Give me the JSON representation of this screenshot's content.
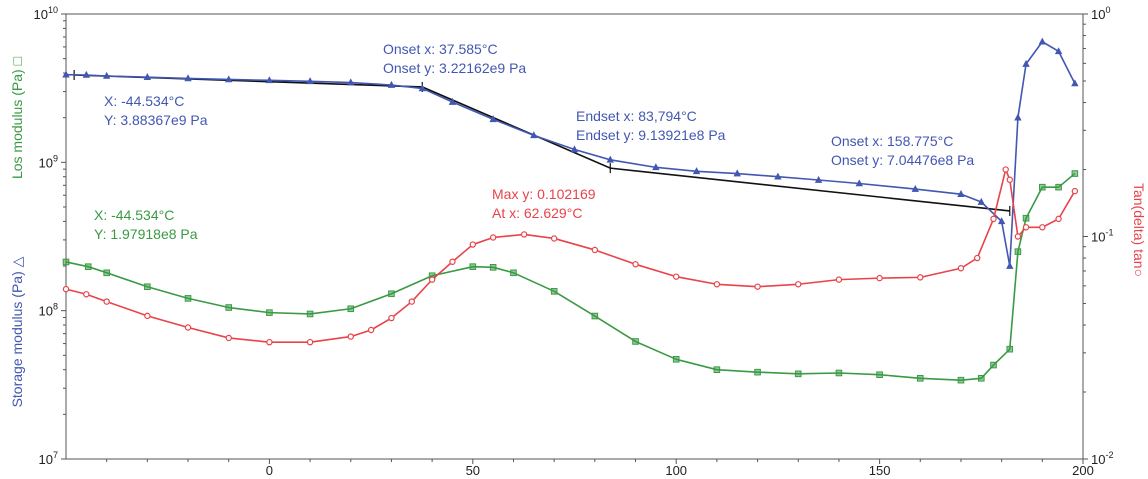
{
  "chart_data": {
    "type": "line",
    "xlabel": "",
    "xlim": [
      -50,
      200
    ],
    "x_ticks": [
      "0",
      "50",
      "100",
      "150",
      "200"
    ],
    "left_axis": {
      "scale": "log",
      "ylim": [
        10000000,
        10000000000
      ],
      "ticks": [
        {
          "base": "10",
          "exp": "7"
        },
        {
          "base": "10",
          "exp": "8"
        },
        {
          "base": "10",
          "exp": "9"
        },
        {
          "base": "10",
          "exp": "10"
        }
      ],
      "label_storage": "Storage modulus (Pa) △",
      "label_loss": "Los modulus (Pa) □"
    },
    "right_axis": {
      "scale": "log",
      "ylim": [
        0.01,
        1
      ],
      "ticks": [
        {
          "base": "10",
          "exp": "-2"
        },
        {
          "base": "10",
          "exp": "-1"
        },
        {
          "base": "10",
          "exp": "0"
        }
      ],
      "label": "Tan(delta) tan○"
    },
    "colors": {
      "storage": "#4257b2",
      "loss": "#3a9a44",
      "tan": "#e8434a",
      "onset_line": "#111111",
      "axis": "#555555"
    },
    "series": [
      {
        "key": "storage",
        "axis": "left",
        "marker": "triangle",
        "x": [
          -50,
          -45,
          -40,
          -30,
          -20,
          -10,
          0,
          10,
          20,
          30,
          37.585,
          45,
          55,
          65,
          75,
          83.794,
          95,
          105,
          115,
          125,
          135,
          145,
          158.775,
          170,
          175,
          180,
          182,
          184,
          186,
          190,
          194,
          198
        ],
        "y": [
          3900000000,
          3880000000,
          3820000000,
          3750000000,
          3680000000,
          3620000000,
          3570000000,
          3520000000,
          3450000000,
          3320000000,
          3150000000,
          2550000000,
          1950000000,
          1520000000,
          1220000000,
          1040000000,
          925000000,
          870000000,
          840000000,
          800000000,
          760000000,
          720000000,
          660000000,
          610000000,
          540000000,
          400000000,
          200000000,
          2000000000,
          4600000000,
          6500000000,
          5600000000,
          3400000000
        ]
      },
      {
        "key": "loss",
        "axis": "left",
        "marker": "square",
        "x": [
          -50,
          -44.534,
          -40,
          -30,
          -20,
          -10,
          0,
          10,
          20,
          30,
          40,
          50,
          55,
          60,
          70,
          80,
          90,
          100,
          110,
          120,
          130,
          140,
          150,
          160,
          170,
          175,
          178,
          182,
          184,
          186,
          190,
          194,
          198
        ],
        "y": [
          213000000,
          197918000,
          180000000,
          145000000,
          121000000,
          105000000,
          97000000,
          95000000,
          103000000,
          130000000,
          172000000,
          198000000,
          196000000,
          180000000,
          135000000,
          92000000,
          62000000,
          47000000,
          40000000,
          38500000,
          37500000,
          38000000,
          37000000,
          35000000,
          34000000,
          35000000,
          43000000,
          55000000,
          250000000,
          420000000,
          680000000,
          680000000,
          840000000
        ]
      },
      {
        "key": "tan",
        "axis": "right",
        "marker": "circle",
        "x": [
          -50,
          -45,
          -40,
          -30,
          -20,
          -10,
          0,
          10,
          20,
          25,
          30,
          35,
          40,
          45,
          50,
          55,
          62.629,
          70,
          80,
          90,
          100,
          110,
          120,
          130,
          140,
          150,
          160,
          170,
          174,
          178,
          181,
          182,
          184,
          186,
          190,
          194,
          198
        ],
        "y": [
          0.058,
          0.055,
          0.051,
          0.044,
          0.039,
          0.035,
          0.0335,
          0.0335,
          0.0355,
          0.038,
          0.043,
          0.051,
          0.064,
          0.077,
          0.092,
          0.099,
          0.102169,
          0.098,
          0.087,
          0.075,
          0.066,
          0.061,
          0.0595,
          0.061,
          0.064,
          0.065,
          0.0655,
          0.072,
          0.08,
          0.12,
          0.2,
          0.18,
          0.1,
          0.11,
          0.11,
          0.12,
          0.16
        ]
      }
    ],
    "onset_lines": [
      {
        "x": [
          -48,
          37.585,
          83.794,
          182
        ],
        "y": [
          3880000000,
          3221620000,
          913921000,
          470000000
        ]
      }
    ],
    "annotations": [
      {
        "key": "onset1",
        "color_key": "storage",
        "lines": [
          "Onset x: 37.585°C",
          "Onset y: 3.22162e9 Pa"
        ]
      },
      {
        "key": "xy_storage",
        "color_key": "storage",
        "lines": [
          "X: -44.534°C",
          "Y: 3.88367e9 Pa"
        ]
      },
      {
        "key": "endset",
        "color_key": "storage",
        "lines": [
          "Endset x: 83,794°C",
          "Endset y: 9.13921e8 Pa"
        ]
      },
      {
        "key": "onset2",
        "color_key": "storage",
        "lines": [
          "Onset x: 158.775°C",
          "Onset y: 7.04476e8 Pa"
        ]
      },
      {
        "key": "maxy",
        "color_key": "tan",
        "lines": [
          "Max y: 0.102169",
          "At x: 62.629°C"
        ]
      },
      {
        "key": "xy_loss",
        "color_key": "loss",
        "lines": [
          "X: -44.534°C",
          "Y: 1.97918e8 Pa"
        ]
      }
    ]
  }
}
